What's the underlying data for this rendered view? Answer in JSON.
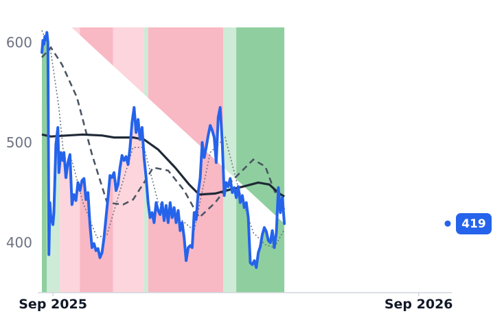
{
  "chart_data": {
    "type": "line",
    "title": "",
    "xlabel": "",
    "ylabel": "",
    "x_range": [
      "2025-08-21",
      "2026-09-30"
    ],
    "ylim": [
      350,
      615
    ],
    "y_ticks": [
      400,
      500,
      600
    ],
    "x_ticks": [
      {
        "date": "2025-09-01",
        "label": "Sep 2025"
      },
      {
        "date": "2026-09-01",
        "label": "Sep 2026"
      }
    ],
    "grid": false,
    "legend": "none",
    "colors": {
      "price": "#2563eb",
      "ma_long": "#1f2937",
      "ma_mid": "#4b5563",
      "ma_short": "#6b7280",
      "strong_up": "#8fcf9f",
      "up": "#cdebd6",
      "down": "#fdd5dc",
      "strong_down": "#f8b8c4",
      "badge": "#2563eb"
    },
    "regimes": [
      {
        "start": "2025-08-21",
        "end": "2025-08-26",
        "state": "strong_up"
      },
      {
        "start": "2025-08-26",
        "end": "2025-09-08",
        "state": "up"
      },
      {
        "start": "2025-09-08",
        "end": "2025-09-28",
        "state": "down"
      },
      {
        "start": "2025-09-28",
        "end": "2025-10-31",
        "state": "strong_down"
      },
      {
        "start": "2025-10-31",
        "end": "2025-12-01",
        "state": "down"
      },
      {
        "start": "2025-12-01",
        "end": "2025-12-05",
        "state": "up"
      },
      {
        "start": "2025-12-05",
        "end": "2026-02-18",
        "state": "strong_down"
      },
      {
        "start": "2026-02-18",
        "end": "2026-03-03",
        "state": "up"
      },
      {
        "start": "2026-03-03",
        "end": "2026-04-26",
        "state": "strong_up"
      },
      {
        "start": "2026-04-26",
        "end": "2026-05-04",
        "state": "up"
      },
      {
        "start": "2026-05-04",
        "end": "2026-05-23",
        "state": "down"
      },
      {
        "start": "2026-05-23",
        "end": "2026-06-30",
        "state": "strong_down"
      }
    ],
    "series": [
      {
        "key": "price",
        "values": [
          [
            "2025-08-21",
            590
          ],
          [
            "2025-08-22",
            602
          ],
          [
            "2025-08-23",
            598
          ],
          [
            "2025-08-24",
            606
          ],
          [
            "2025-08-25",
            603
          ],
          [
            "2025-08-26",
            610
          ],
          [
            "2025-08-27",
            600
          ],
          [
            "2025-08-28",
            388
          ],
          [
            "2025-08-29",
            440
          ],
          [
            "2025-08-30",
            425
          ],
          [
            "2025-09-01",
            418
          ],
          [
            "2025-09-02",
            430
          ],
          [
            "2025-09-04",
            498
          ],
          [
            "2025-09-06",
            515
          ],
          [
            "2025-09-07",
            470
          ],
          [
            "2025-09-09",
            490
          ],
          [
            "2025-09-11",
            482
          ],
          [
            "2025-09-12",
            490
          ],
          [
            "2025-09-14",
            465
          ],
          [
            "2025-09-16",
            480
          ],
          [
            "2025-09-18",
            488
          ],
          [
            "2025-09-20",
            438
          ],
          [
            "2025-09-22",
            448
          ],
          [
            "2025-09-24",
            442
          ],
          [
            "2025-09-26",
            460
          ],
          [
            "2025-09-28",
            452
          ],
          [
            "2025-09-30",
            462
          ],
          [
            "2025-10-02",
            464
          ],
          [
            "2025-10-04",
            443
          ],
          [
            "2025-10-06",
            450
          ],
          [
            "2025-10-08",
            418
          ],
          [
            "2025-10-10",
            395
          ],
          [
            "2025-10-12",
            399
          ],
          [
            "2025-10-14",
            392
          ],
          [
            "2025-10-16",
            394
          ],
          [
            "2025-10-18",
            385
          ],
          [
            "2025-10-20",
            390
          ],
          [
            "2025-10-22",
            405
          ],
          [
            "2025-10-24",
            425
          ],
          [
            "2025-10-26",
            445
          ],
          [
            "2025-10-28",
            467
          ],
          [
            "2025-10-30",
            465
          ],
          [
            "2025-11-01",
            470
          ],
          [
            "2025-11-03",
            452
          ],
          [
            "2025-11-05",
            458
          ],
          [
            "2025-11-07",
            475
          ],
          [
            "2025-11-09",
            487
          ],
          [
            "2025-11-11",
            482
          ],
          [
            "2025-11-13",
            486
          ],
          [
            "2025-11-15",
            478
          ],
          [
            "2025-11-17",
            495
          ],
          [
            "2025-11-19",
            520
          ],
          [
            "2025-11-21",
            535
          ],
          [
            "2025-11-23",
            510
          ],
          [
            "2025-11-25",
            523
          ],
          [
            "2025-11-27",
            503
          ],
          [
            "2025-11-29",
            515
          ],
          [
            "2025-12-01",
            485
          ],
          [
            "2025-12-03",
            465
          ],
          [
            "2025-12-05",
            440
          ],
          [
            "2025-12-07",
            425
          ],
          [
            "2025-12-09",
            430
          ],
          [
            "2025-12-11",
            420
          ],
          [
            "2025-12-13",
            440
          ],
          [
            "2025-12-15",
            432
          ],
          [
            "2025-12-17",
            428
          ],
          [
            "2025-12-19",
            440
          ],
          [
            "2025-12-21",
            422
          ],
          [
            "2025-12-23",
            437
          ],
          [
            "2025-12-25",
            420
          ],
          [
            "2025-12-27",
            440
          ],
          [
            "2025-12-29",
            425
          ],
          [
            "2025-12-31",
            435
          ],
          [
            "2026-01-02",
            420
          ],
          [
            "2026-01-04",
            432
          ],
          [
            "2026-01-06",
            412
          ],
          [
            "2026-01-08",
            420
          ],
          [
            "2026-01-10",
            405
          ],
          [
            "2026-01-12",
            382
          ],
          [
            "2026-01-14",
            395
          ],
          [
            "2026-01-16",
            397
          ],
          [
            "2026-01-18",
            395
          ],
          [
            "2026-01-20",
            430
          ],
          [
            "2026-01-22",
            423
          ],
          [
            "2026-01-24",
            450
          ],
          [
            "2026-01-26",
            465
          ],
          [
            "2026-01-28",
            500
          ],
          [
            "2026-01-30",
            485
          ],
          [
            "2026-02-01",
            495
          ],
          [
            "2026-02-03",
            507
          ],
          [
            "2026-02-05",
            517
          ],
          [
            "2026-02-07",
            512
          ],
          [
            "2026-02-09",
            505
          ],
          [
            "2026-02-11",
            480
          ],
          [
            "2026-02-13",
            525
          ],
          [
            "2026-02-15",
            535
          ],
          [
            "2026-02-17",
            500
          ],
          [
            "2026-02-19",
            447
          ],
          [
            "2026-02-21",
            460
          ],
          [
            "2026-02-23",
            456
          ],
          [
            "2026-02-25",
            464
          ],
          [
            "2026-02-27",
            450
          ],
          [
            "2026-03-01",
            455
          ],
          [
            "2026-03-03",
            445
          ],
          [
            "2026-03-05",
            456
          ],
          [
            "2026-03-07",
            440
          ],
          [
            "2026-03-09",
            447
          ],
          [
            "2026-03-11",
            435
          ],
          [
            "2026-03-13",
            440
          ],
          [
            "2026-03-15",
            425
          ],
          [
            "2026-03-17",
            380
          ],
          [
            "2026-03-19",
            378
          ],
          [
            "2026-03-21",
            382
          ],
          [
            "2026-03-23",
            375
          ],
          [
            "2026-03-25",
            390
          ],
          [
            "2026-03-27",
            396
          ],
          [
            "2026-03-29",
            408
          ],
          [
            "2026-03-31",
            415
          ],
          [
            "2026-04-02",
            411
          ],
          [
            "2026-04-04",
            402
          ],
          [
            "2026-04-06",
            400
          ],
          [
            "2026-04-08",
            412
          ],
          [
            "2026-04-10",
            395
          ],
          [
            "2026-04-12",
            410
          ],
          [
            "2026-04-14",
            455
          ],
          [
            "2026-04-16",
            430
          ],
          [
            "2026-04-18",
            445
          ],
          [
            "2026-04-20",
            419
          ]
        ]
      },
      {
        "key": "ma_long",
        "values": [
          [
            "2025-08-21",
            508
          ],
          [
            "2025-08-30",
            506
          ],
          [
            "2025-09-15",
            507
          ],
          [
            "2025-10-01",
            508
          ],
          [
            "2025-10-20",
            507
          ],
          [
            "2025-11-01",
            505
          ],
          [
            "2025-11-20",
            505
          ],
          [
            "2025-12-01",
            503
          ],
          [
            "2025-12-15",
            493
          ],
          [
            "2026-01-01",
            475
          ],
          [
            "2026-01-15",
            458
          ],
          [
            "2026-01-25",
            448
          ],
          [
            "2026-02-10",
            449
          ],
          [
            "2026-02-25",
            453
          ],
          [
            "2026-03-10",
            456
          ],
          [
            "2026-03-25",
            460
          ],
          [
            "2026-04-05",
            458
          ],
          [
            "2026-04-15",
            449
          ],
          [
            "2026-04-20",
            446
          ]
        ]
      },
      {
        "key": "ma_mid",
        "values": [
          [
            "2025-08-21",
            585
          ],
          [
            "2025-08-30",
            595
          ],
          [
            "2025-09-10",
            578
          ],
          [
            "2025-09-25",
            545
          ],
          [
            "2025-10-10",
            488
          ],
          [
            "2025-10-25",
            440
          ],
          [
            "2025-11-10",
            438
          ],
          [
            "2025-11-20",
            443
          ],
          [
            "2025-12-01",
            460
          ],
          [
            "2025-12-10",
            475
          ],
          [
            "2025-12-25",
            472
          ],
          [
            "2026-01-10",
            452
          ],
          [
            "2026-01-25",
            425
          ],
          [
            "2026-02-10",
            440
          ],
          [
            "2026-02-25",
            460
          ],
          [
            "2026-03-10",
            473
          ],
          [
            "2026-03-20",
            483
          ],
          [
            "2026-04-01",
            476
          ],
          [
            "2026-04-10",
            452
          ],
          [
            "2026-04-20",
            433
          ]
        ]
      },
      {
        "key": "ma_short",
        "values": [
          [
            "2025-08-21",
            612
          ],
          [
            "2025-08-30",
            590
          ],
          [
            "2025-09-07",
            535
          ],
          [
            "2025-09-12",
            485
          ],
          [
            "2025-09-20",
            482
          ],
          [
            "2025-10-01",
            440
          ],
          [
            "2025-10-15",
            405
          ],
          [
            "2025-10-25",
            408
          ],
          [
            "2025-11-05",
            445
          ],
          [
            "2025-11-20",
            495
          ],
          [
            "2025-12-01",
            495
          ],
          [
            "2025-12-15",
            440
          ],
          [
            "2026-01-01",
            428
          ],
          [
            "2026-01-20",
            412
          ],
          [
            "2026-02-05",
            490
          ],
          [
            "2026-02-20",
            505
          ],
          [
            "2026-03-05",
            455
          ],
          [
            "2026-03-20",
            410
          ],
          [
            "2026-04-01",
            398
          ],
          [
            "2026-04-10",
            395
          ],
          [
            "2026-04-20",
            413
          ]
        ]
      }
    ],
    "last_value_label": "419"
  }
}
